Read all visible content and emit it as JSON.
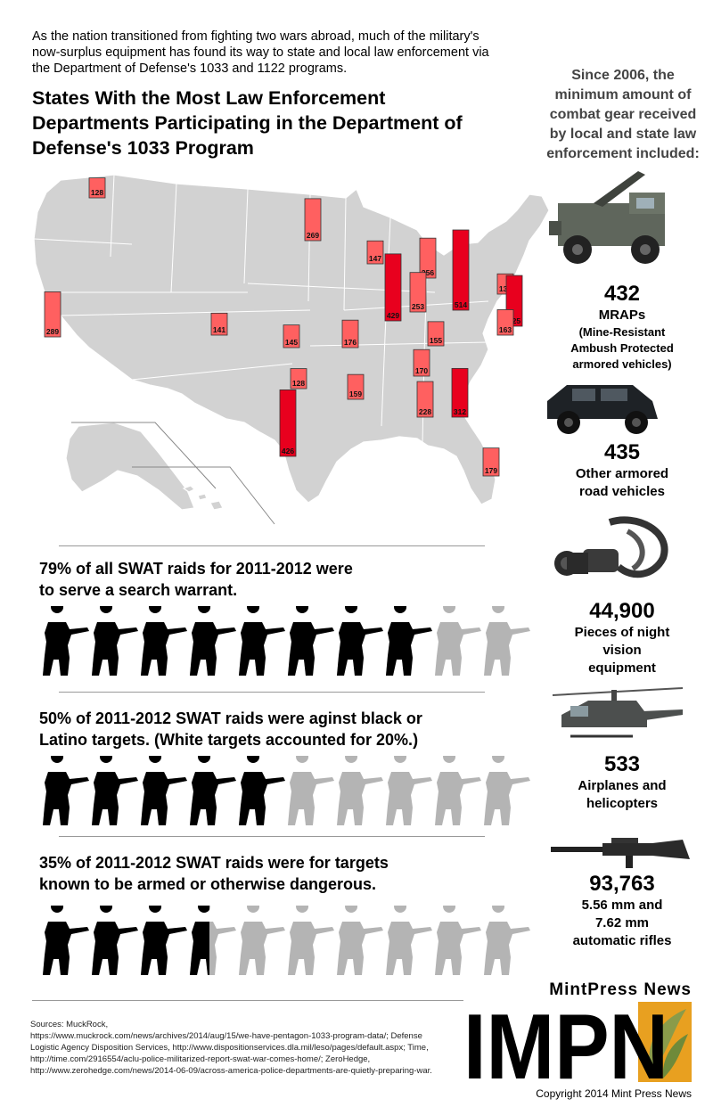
{
  "intro": "As the nation transitioned from fighting two wars abroad, much of the military's now-surplus equipment has found its way to state and local law enforcement via the Department of Defense's 1033 and 1122 programs.",
  "map_title": "States With the Most Law Enforcement Departments Participating in the Department of Defense's 1033 Program",
  "chart_data": [
    {
      "type": "bar",
      "title": "States With the Most Law Enforcement Departments Participating in the Department of Defense's 1033 Program",
      "categories": [
        "Washington",
        "Minnesota",
        "Wisconsin",
        "Michigan",
        "Illinois",
        "Indiana",
        "Ohio",
        "New York",
        "California",
        "Colorado",
        "Kansas",
        "Missouri",
        "Kentucky",
        "Virginia",
        "North Carolina",
        "Tennessee",
        "Oklahoma",
        "Arkansas",
        "Alabama",
        "Georgia",
        "Texas",
        "Florida"
      ],
      "values": [
        128,
        269,
        147,
        256,
        429,
        253,
        514,
        130,
        289,
        141,
        145,
        176,
        155,
        325,
        163,
        170,
        128,
        159,
        228,
        312,
        426,
        179
      ],
      "colors": {
        "bar": "#e8001e",
        "bar_light": "#ff6060",
        "map": "#d2d2d2",
        "border": "#ffffff"
      }
    },
    {
      "type": "pictograph",
      "title": "79% of all SWAT raids for 2011-2012 were to serve a search warrant.",
      "icons_total": 10,
      "value": 79
    },
    {
      "type": "pictograph",
      "title": "50% of 2011-2012 SWAT raids were aginst black or Latino targets. (White targets accounted for 20%.)",
      "icons_total": 10,
      "value": 50
    },
    {
      "type": "pictograph",
      "title": "35% of 2011-2012 SWAT raids were for targets known to be armed or otherwise dangerous.",
      "icons_total": 10,
      "value": 35
    }
  ],
  "stats": [
    {
      "text": "79% of all SWAT raids for 2011-2012 were\nto serve a search warrant.",
      "filled": 8.0
    },
    {
      "text": "50% of 2011-2012 SWAT raids were aginst black or\nLatino targets. (White targets accounted for 20%.)",
      "filled": 5.0
    },
    {
      "text": "35% of 2011-2012 SWAT raids were for targets\nknown to be armed or otherwise dangerous.",
      "filled": 3.5
    }
  ],
  "gear": {
    "title": "Since 2006, the minimum amount of combat gear received by local and state law enforcement included:",
    "items": [
      {
        "number": "432",
        "label": "MRAPs",
        "detail": "(Mine-Resistant\nAmbush Protected\narmored vehicles)",
        "icon": "mrap-icon"
      },
      {
        "number": "435",
        "label": "Other armored\nroad vehicles",
        "icon": "armored-vehicle-icon"
      },
      {
        "number": "44,900",
        "label": "Pieces of night\nvision\nequipment",
        "icon": "night-vision-icon"
      },
      {
        "number": "533",
        "label": "Airplanes and\nhelicopters",
        "icon": "helicopter-icon"
      },
      {
        "number": "93,763",
        "label": "5.56 mm and\n7.62 mm\nautomatic rifles",
        "icon": "rifle-icon"
      }
    ]
  },
  "sources": "Sources: MuckRock,\nhttps://www.muckrock.com/news/archives/2014/aug/15/we-have-pentagon-1033-program-data/; Defense\nLogistic Agency Disposition Services, http://www.dispositionservices.dla.mil/leso/pages/default.aspx; Time,\nhttp://time.com/2916554/aclu-police-militarized-report-swat-war-comes-home/; ZeroHedge,\nhttp://www.zerohedge.com/news/2014-06-09/across-america-police-departments-are-quietly-preparing-war.",
  "brand": {
    "name": "MintPress News",
    "logo_text": "IMPN",
    "copyright": "Copyright 2014 Mint Press News"
  },
  "colors": {
    "soldier_dark": "#000000",
    "soldier_light": "#b4b4b4",
    "accent": "#e8001e"
  }
}
